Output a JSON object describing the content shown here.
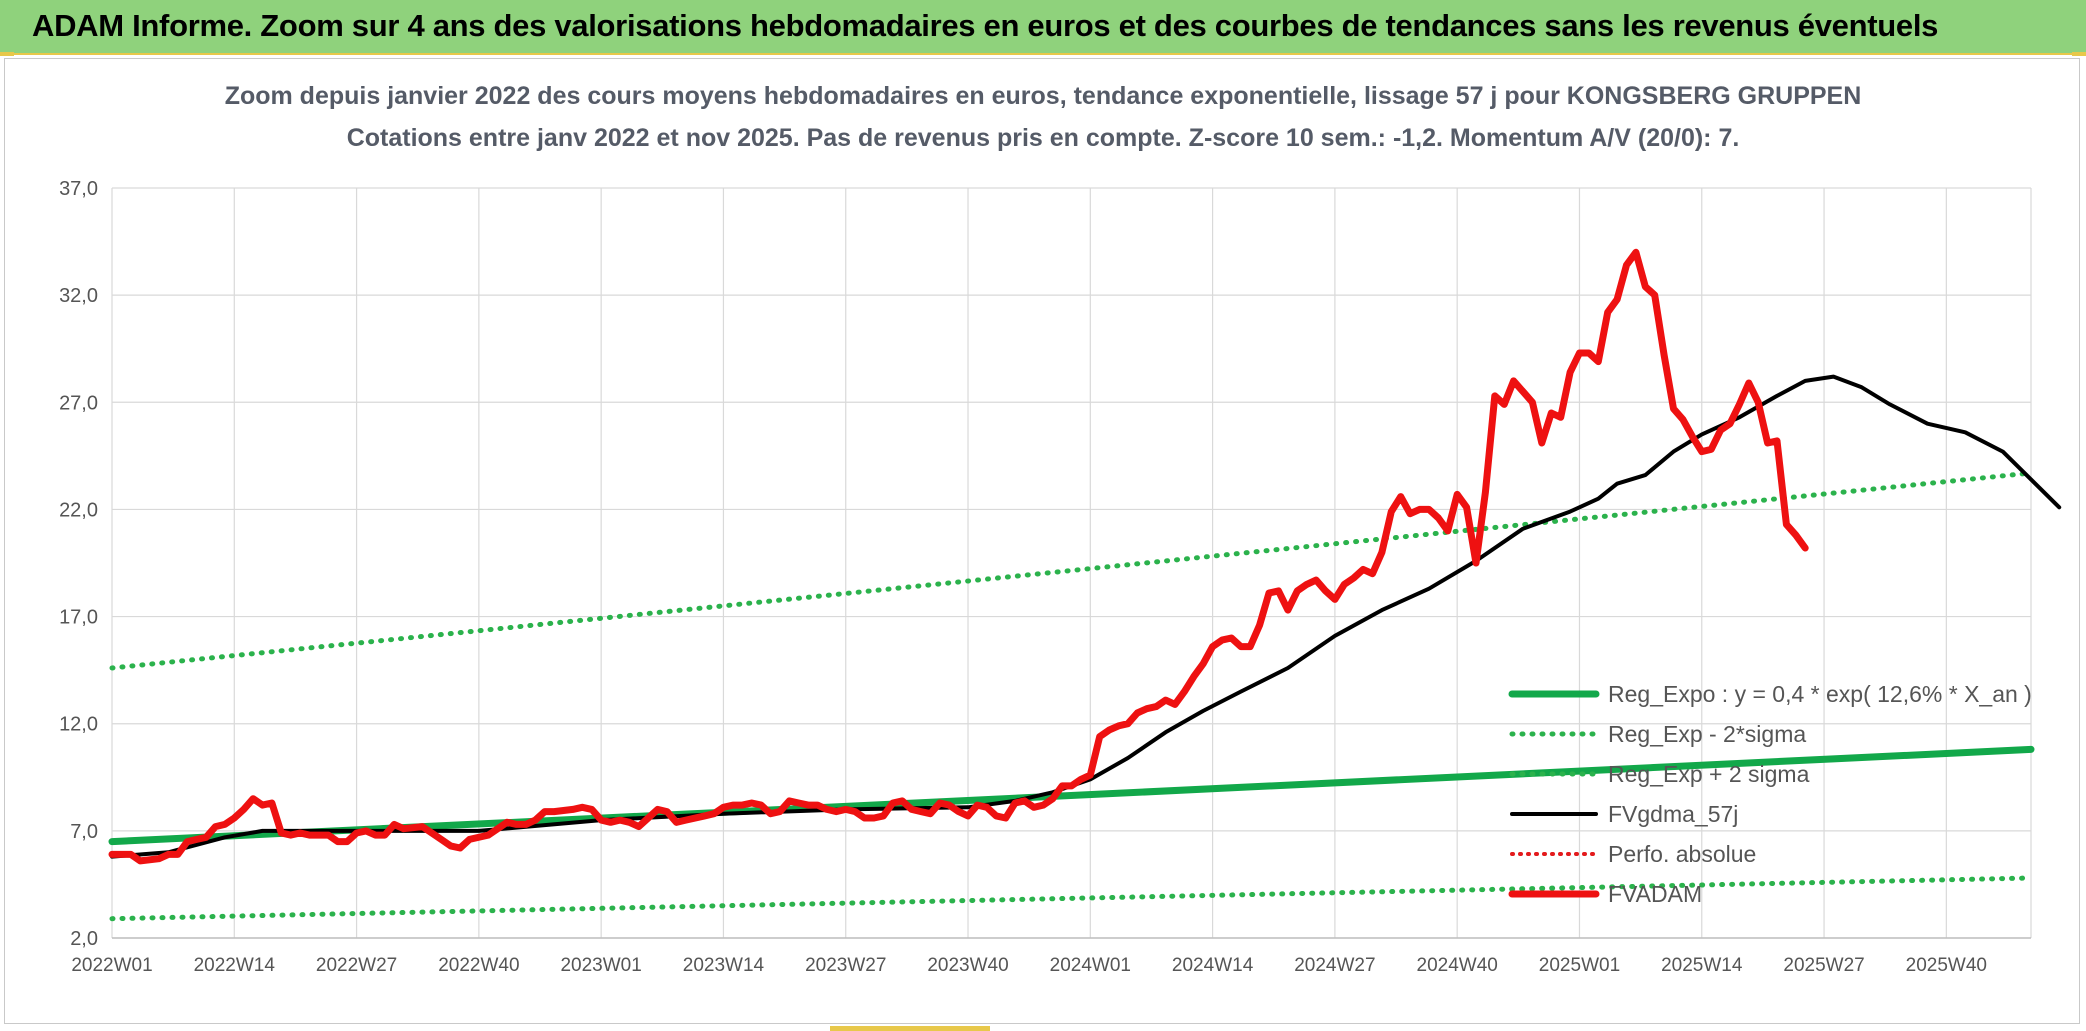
{
  "banner": {
    "title": "ADAM Informe. Zoom sur 4 ans des valorisations hebdomadaires en euros et des courbes de tendances sans les revenus éventuels"
  },
  "colors": {
    "banner_bg": "#8fd27c",
    "reg_expo": "#12a84a",
    "reg_sigma": "#2bb24c",
    "fvgdma": "#000000",
    "perfo": "#e31a1c",
    "fvadam": "#ee1111"
  },
  "chart_data": {
    "type": "line",
    "title": "Zoom depuis janvier 2022 des cours moyens hebdomadaires en euros, tendance exponentielle, lissage 57 j pour KONGSBERG GRUPPEN",
    "subtitle": "Cotations entre janv 2022 et nov 2025. Pas de revenus pris en compte. Z-score 10 sem.: -1,2. Momentum A/V (20/0): 7.",
    "xlabel": "",
    "ylabel": "",
    "ylim": [
      2.0,
      37.0
    ],
    "yticks": [
      "2,0",
      "7,0",
      "12,0",
      "17,0",
      "22,0",
      "27,0",
      "32,0",
      "37,0"
    ],
    "x_tick_labels": [
      "2022W01",
      "2022W14",
      "2022W27",
      "2022W40",
      "2023W01",
      "2023W14",
      "2023W27",
      "2023W40",
      "2024W01",
      "2024W14",
      "2024W27",
      "2024W40",
      "2025W01",
      "2025W14",
      "2025W27",
      "2025W40"
    ],
    "x_tick_weeks": [
      0,
      13,
      26,
      39,
      52,
      65,
      78,
      91,
      104,
      117,
      130,
      143,
      156,
      169,
      182,
      195
    ],
    "x_range_weeks": [
      0,
      204
    ],
    "grid": true,
    "legend_position": "bottom-right",
    "series": [
      {
        "name": "Reg_Expo : y = 0,4 * exp( 12,6% *  X_an )",
        "style": "solid",
        "points": [
          [
            0,
            6.5
          ],
          [
            204,
            10.8
          ]
        ]
      },
      {
        "name": "Reg_Exp - 2*sigma",
        "style": "dotted",
        "points": [
          [
            0,
            14.6
          ],
          [
            204,
            23.7
          ]
        ]
      },
      {
        "name": "Reg_Exp + 2 sigma",
        "style": "dotted",
        "points": [
          [
            0,
            2.9
          ],
          [
            204,
            4.8
          ]
        ]
      },
      {
        "name": "FVgdma_57j",
        "style": "solid",
        "points": [
          [
            0,
            5.8
          ],
          [
            6,
            6.0
          ],
          [
            12,
            6.7
          ],
          [
            16,
            7.0
          ],
          [
            26,
            7.0
          ],
          [
            39,
            7.0
          ],
          [
            52,
            7.5
          ],
          [
            65,
            7.8
          ],
          [
            78,
            8.0
          ],
          [
            91,
            8.1
          ],
          [
            96,
            8.4
          ],
          [
            100,
            8.8
          ],
          [
            104,
            9.4
          ],
          [
            108,
            10.4
          ],
          [
            112,
            11.6
          ],
          [
            116,
            12.6
          ],
          [
            120,
            13.5
          ],
          [
            125,
            14.6
          ],
          [
            130,
            16.1
          ],
          [
            135,
            17.3
          ],
          [
            140,
            18.3
          ],
          [
            145,
            19.6
          ],
          [
            150,
            21.1
          ],
          [
            155,
            21.9
          ],
          [
            158,
            22.5
          ],
          [
            160,
            23.2
          ],
          [
            163,
            23.6
          ],
          [
            166,
            24.7
          ],
          [
            169,
            25.5
          ],
          [
            173,
            26.3
          ],
          [
            177,
            27.3
          ],
          [
            180,
            28.0
          ],
          [
            183,
            28.2
          ],
          [
            186,
            27.7
          ],
          [
            189,
            26.9
          ],
          [
            193,
            26.0
          ],
          [
            197,
            25.6
          ],
          [
            201,
            24.7
          ],
          [
            204,
            23.4
          ],
          [
            207,
            22.1
          ]
        ]
      },
      {
        "name": "Perfo. absolue",
        "style": "dotted",
        "points": []
      },
      {
        "name": "FVADAM",
        "style": "solid",
        "points": [
          [
            0,
            5.9
          ],
          [
            2,
            5.9
          ],
          [
            3,
            5.6
          ],
          [
            5,
            5.7
          ],
          [
            6,
            5.9
          ],
          [
            7,
            5.9
          ],
          [
            8,
            6.5
          ],
          [
            9,
            6.6
          ],
          [
            10,
            6.7
          ],
          [
            11,
            7.2
          ],
          [
            12,
            7.3
          ],
          [
            13,
            7.6
          ],
          [
            14,
            8.0
          ],
          [
            15,
            8.5
          ],
          [
            16,
            8.2
          ],
          [
            17,
            8.3
          ],
          [
            18,
            6.9
          ],
          [
            19,
            6.8
          ],
          [
            20,
            6.9
          ],
          [
            21,
            6.8
          ],
          [
            23,
            6.8
          ],
          [
            24,
            6.5
          ],
          [
            25,
            6.5
          ],
          [
            26,
            6.9
          ],
          [
            27,
            7.0
          ],
          [
            28,
            6.8
          ],
          [
            29,
            6.8
          ],
          [
            30,
            7.3
          ],
          [
            31,
            7.1
          ],
          [
            33,
            7.2
          ],
          [
            34,
            6.9
          ],
          [
            35,
            6.6
          ],
          [
            36,
            6.3
          ],
          [
            37,
            6.2
          ],
          [
            38,
            6.6
          ],
          [
            40,
            6.8
          ],
          [
            42,
            7.4
          ],
          [
            43,
            7.3
          ],
          [
            44,
            7.3
          ],
          [
            45,
            7.5
          ],
          [
            46,
            7.9
          ],
          [
            47,
            7.9
          ],
          [
            49,
            8.0
          ],
          [
            50,
            8.1
          ],
          [
            51,
            8.0
          ],
          [
            52,
            7.5
          ],
          [
            53,
            7.4
          ],
          [
            54,
            7.5
          ],
          [
            55,
            7.4
          ],
          [
            56,
            7.2
          ],
          [
            57,
            7.6
          ],
          [
            58,
            8.0
          ],
          [
            59,
            7.9
          ],
          [
            60,
            7.4
          ],
          [
            61,
            7.5
          ],
          [
            63,
            7.7
          ],
          [
            64,
            7.8
          ],
          [
            65,
            8.1
          ],
          [
            66,
            8.2
          ],
          [
            67,
            8.2
          ],
          [
            68,
            8.3
          ],
          [
            69,
            8.2
          ],
          [
            70,
            7.8
          ],
          [
            71,
            7.9
          ],
          [
            72,
            8.4
          ],
          [
            73,
            8.3
          ],
          [
            74,
            8.2
          ],
          [
            75,
            8.2
          ],
          [
            76,
            8.0
          ],
          [
            77,
            7.9
          ],
          [
            78,
            8.0
          ],
          [
            79,
            7.9
          ],
          [
            80,
            7.6
          ],
          [
            81,
            7.6
          ],
          [
            82,
            7.7
          ],
          [
            83,
            8.3
          ],
          [
            84,
            8.4
          ],
          [
            85,
            8.0
          ],
          [
            86,
            7.9
          ],
          [
            87,
            7.8
          ],
          [
            88,
            8.3
          ],
          [
            89,
            8.2
          ],
          [
            90,
            7.9
          ],
          [
            91,
            7.7
          ],
          [
            92,
            8.2
          ],
          [
            93,
            8.1
          ],
          [
            94,
            7.7
          ],
          [
            95,
            7.6
          ],
          [
            96,
            8.3
          ],
          [
            97,
            8.4
          ],
          [
            98,
            8.1
          ],
          [
            99,
            8.2
          ],
          [
            100,
            8.5
          ],
          [
            101,
            9.1
          ],
          [
            102,
            9.1
          ],
          [
            103,
            9.4
          ],
          [
            104,
            9.6
          ],
          [
            105,
            11.4
          ],
          [
            106,
            11.7
          ],
          [
            107,
            11.9
          ],
          [
            108,
            12.0
          ],
          [
            109,
            12.5
          ],
          [
            110,
            12.7
          ],
          [
            111,
            12.8
          ],
          [
            112,
            13.1
          ],
          [
            113,
            12.9
          ],
          [
            114,
            13.5
          ],
          [
            115,
            14.2
          ],
          [
            116,
            14.8
          ],
          [
            117,
            15.6
          ],
          [
            118,
            15.9
          ],
          [
            119,
            16.0
          ],
          [
            120,
            15.6
          ],
          [
            121,
            15.6
          ],
          [
            122,
            16.6
          ],
          [
            123,
            18.1
          ],
          [
            124,
            18.2
          ],
          [
            125,
            17.3
          ],
          [
            126,
            18.2
          ],
          [
            127,
            18.5
          ],
          [
            128,
            18.7
          ],
          [
            129,
            18.2
          ],
          [
            130,
            17.8
          ],
          [
            131,
            18.5
          ],
          [
            132,
            18.8
          ],
          [
            133,
            19.2
          ],
          [
            134,
            19.0
          ],
          [
            135,
            20.0
          ],
          [
            136,
            21.9
          ],
          [
            137,
            22.6
          ],
          [
            138,
            21.8
          ],
          [
            139,
            22.0
          ],
          [
            140,
            22.0
          ],
          [
            141,
            21.6
          ],
          [
            142,
            21.0
          ],
          [
            143,
            22.7
          ],
          [
            144,
            22.1
          ],
          [
            145,
            19.5
          ],
          [
            146,
            22.8
          ],
          [
            147,
            27.3
          ],
          [
            148,
            26.9
          ],
          [
            149,
            28.0
          ],
          [
            150,
            27.5
          ],
          [
            151,
            27.0
          ],
          [
            152,
            25.1
          ],
          [
            153,
            26.5
          ],
          [
            154,
            26.3
          ],
          [
            155,
            28.4
          ],
          [
            156,
            29.3
          ],
          [
            157,
            29.3
          ],
          [
            158,
            28.9
          ],
          [
            159,
            31.2
          ],
          [
            160,
            31.8
          ],
          [
            161,
            33.4
          ],
          [
            162,
            34.0
          ],
          [
            163,
            32.4
          ],
          [
            164,
            32.0
          ],
          [
            165,
            29.2
          ],
          [
            166,
            26.7
          ],
          [
            167,
            26.2
          ],
          [
            168,
            25.4
          ],
          [
            169,
            24.7
          ],
          [
            170,
            24.8
          ],
          [
            171,
            25.7
          ],
          [
            172,
            26.0
          ],
          [
            173,
            26.9
          ],
          [
            174,
            27.9
          ],
          [
            175,
            27.0
          ],
          [
            176,
            25.1
          ],
          [
            177,
            25.2
          ],
          [
            178,
            21.3
          ],
          [
            179,
            20.8
          ],
          [
            180,
            20.2
          ]
        ]
      }
    ]
  }
}
